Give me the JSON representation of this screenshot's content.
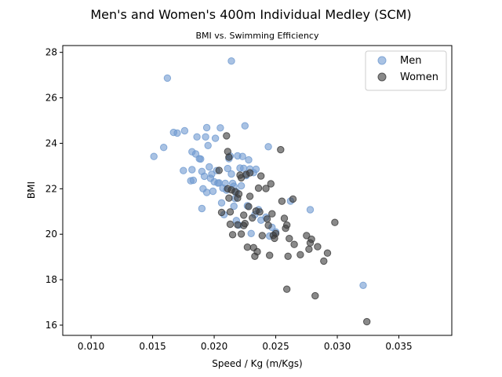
{
  "chart_data": {
    "type": "scatter",
    "title": "Men's and Women's 400m Individual Medley (SCM)",
    "subtitle": "BMI vs. Swimming Efficiency",
    "xlabel": "Speed / Kg (m/Kgs)",
    "ylabel": "BMI",
    "xlim": [
      0.0077,
      0.0393
    ],
    "ylim": [
      15.55,
      28.3
    ],
    "xticks": [
      "0.010",
      "0.015",
      "0.020",
      "0.025",
      "0.030",
      "0.035"
    ],
    "yticks": [
      "16",
      "18",
      "20",
      "22",
      "24",
      "26",
      "28"
    ],
    "grid": false,
    "legend_position": "top-right",
    "series": [
      {
        "name": "Men",
        "color": "#6f9ad0",
        "points": [
          [
            0.0151,
            23.42
          ],
          [
            0.0159,
            23.82
          ],
          [
            0.0162,
            26.87
          ],
          [
            0.0167,
            24.48
          ],
          [
            0.017,
            24.45
          ],
          [
            0.0176,
            24.55
          ],
          [
            0.0175,
            22.8
          ],
          [
            0.0181,
            22.35
          ],
          [
            0.0182,
            23.63
          ],
          [
            0.0182,
            22.84
          ],
          [
            0.0183,
            22.37
          ],
          [
            0.0185,
            23.53
          ],
          [
            0.0186,
            24.28
          ],
          [
            0.0188,
            23.32
          ],
          [
            0.0189,
            23.31
          ],
          [
            0.019,
            22.76
          ],
          [
            0.019,
            21.13
          ],
          [
            0.0191,
            22.0
          ],
          [
            0.0192,
            22.55
          ],
          [
            0.0193,
            24.28
          ],
          [
            0.0194,
            24.69
          ],
          [
            0.0194,
            21.84
          ],
          [
            0.0195,
            23.9
          ],
          [
            0.0196,
            22.96
          ],
          [
            0.0197,
            22.46
          ],
          [
            0.0198,
            22.64
          ],
          [
            0.0199,
            21.89
          ],
          [
            0.02,
            22.31
          ],
          [
            0.0201,
            24.22
          ],
          [
            0.0202,
            22.8
          ],
          [
            0.0203,
            22.25
          ],
          [
            0.0204,
            22.26
          ],
          [
            0.0205,
            24.68
          ],
          [
            0.0206,
            21.38
          ],
          [
            0.0207,
            22.03
          ],
          [
            0.0208,
            20.86
          ],
          [
            0.0209,
            22.24
          ],
          [
            0.021,
            21.94
          ],
          [
            0.0211,
            22.89
          ],
          [
            0.0212,
            23.32
          ],
          [
            0.0213,
            23.44
          ],
          [
            0.0214,
            22.65
          ],
          [
            0.0214,
            27.62
          ],
          [
            0.0215,
            22.24
          ],
          [
            0.0216,
            22.11
          ],
          [
            0.0216,
            21.23
          ],
          [
            0.0217,
            21.57
          ],
          [
            0.0218,
            21.87
          ],
          [
            0.0218,
            20.6
          ],
          [
            0.0219,
            23.45
          ],
          [
            0.022,
            20.4
          ],
          [
            0.0221,
            22.91
          ],
          [
            0.0222,
            22.13
          ],
          [
            0.0223,
            23.42
          ],
          [
            0.0224,
            22.9
          ],
          [
            0.0225,
            24.77
          ],
          [
            0.0226,
            22.58
          ],
          [
            0.0227,
            21.25
          ],
          [
            0.0228,
            23.27
          ],
          [
            0.0229,
            22.87
          ],
          [
            0.023,
            20.03
          ],
          [
            0.0232,
            22.71
          ],
          [
            0.0233,
            20.86
          ],
          [
            0.0234,
            22.86
          ],
          [
            0.0236,
            21.08
          ],
          [
            0.0238,
            20.62
          ],
          [
            0.0242,
            20.75
          ],
          [
            0.0244,
            23.85
          ],
          [
            0.0245,
            19.92
          ],
          [
            0.0247,
            20.3
          ],
          [
            0.025,
            20.1
          ],
          [
            0.0262,
            21.46
          ],
          [
            0.0278,
            21.08
          ],
          [
            0.0321,
            17.75
          ]
        ]
      },
      {
        "name": "Women",
        "color": "#3a3a3a",
        "points": [
          [
            0.0204,
            22.81
          ],
          [
            0.0206,
            20.96
          ],
          [
            0.021,
            24.33
          ],
          [
            0.0211,
            23.64
          ],
          [
            0.0211,
            22.0
          ],
          [
            0.0212,
            23.39
          ],
          [
            0.0212,
            21.59
          ],
          [
            0.0213,
            20.98
          ],
          [
            0.0213,
            20.44
          ],
          [
            0.0214,
            21.95
          ],
          [
            0.0215,
            19.98
          ],
          [
            0.0217,
            21.87
          ],
          [
            0.0219,
            21.59
          ],
          [
            0.0219,
            20.41
          ],
          [
            0.022,
            21.77
          ],
          [
            0.0221,
            22.6
          ],
          [
            0.0222,
            22.48
          ],
          [
            0.0222,
            20.01
          ],
          [
            0.0224,
            20.38
          ],
          [
            0.0224,
            20.84
          ],
          [
            0.0225,
            20.47
          ],
          [
            0.0226,
            22.63
          ],
          [
            0.0227,
            19.43
          ],
          [
            0.0228,
            21.22
          ],
          [
            0.0229,
            22.7
          ],
          [
            0.0229,
            21.67
          ],
          [
            0.0231,
            20.72
          ],
          [
            0.0232,
            19.41
          ],
          [
            0.0233,
            19.03
          ],
          [
            0.0234,
            21.02
          ],
          [
            0.0235,
            19.23
          ],
          [
            0.0236,
            22.03
          ],
          [
            0.0237,
            20.98
          ],
          [
            0.0238,
            22.56
          ],
          [
            0.0239,
            19.94
          ],
          [
            0.0242,
            22.01
          ],
          [
            0.0243,
            20.67
          ],
          [
            0.0244,
            20.39
          ],
          [
            0.0245,
            19.07
          ],
          [
            0.0246,
            22.22
          ],
          [
            0.0247,
            20.9
          ],
          [
            0.0248,
            19.95
          ],
          [
            0.0249,
            19.82
          ],
          [
            0.025,
            20.03
          ],
          [
            0.0254,
            23.72
          ],
          [
            0.0255,
            21.45
          ],
          [
            0.0257,
            20.7
          ],
          [
            0.0258,
            20.26
          ],
          [
            0.0259,
            20.4
          ],
          [
            0.0259,
            17.58
          ],
          [
            0.026,
            19.03
          ],
          [
            0.0261,
            19.81
          ],
          [
            0.0264,
            21.55
          ],
          [
            0.0265,
            19.55
          ],
          [
            0.027,
            19.1
          ],
          [
            0.0275,
            19.94
          ],
          [
            0.0277,
            19.34
          ],
          [
            0.0278,
            19.62
          ],
          [
            0.0279,
            19.78
          ],
          [
            0.0282,
            17.29
          ],
          [
            0.0284,
            19.45
          ],
          [
            0.0289,
            18.82
          ],
          [
            0.0292,
            19.17
          ],
          [
            0.0298,
            20.52
          ],
          [
            0.0324,
            16.15
          ]
        ]
      }
    ]
  }
}
